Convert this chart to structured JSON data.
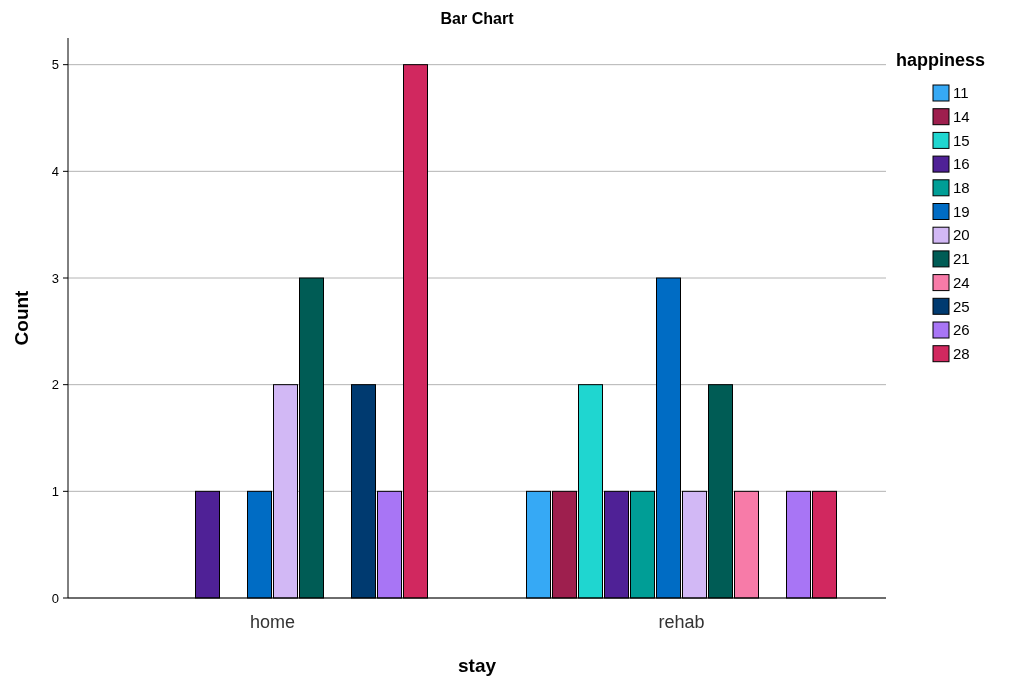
{
  "chart_data": {
    "type": "bar",
    "title": "Bar Chart",
    "xlabel": "stay",
    "ylabel": "Count",
    "legend_title": "happiness",
    "categories": [
      "home",
      "rehab"
    ],
    "series": [
      {
        "name": "11",
        "color": "#36a9f5",
        "values": [
          null,
          1
        ]
      },
      {
        "name": "14",
        "color": "#9e1f4e",
        "values": [
          null,
          1
        ]
      },
      {
        "name": "15",
        "color": "#1fd6d0",
        "values": [
          null,
          2
        ]
      },
      {
        "name": "16",
        "color": "#4f2196",
        "values": [
          1,
          1
        ]
      },
      {
        "name": "18",
        "color": "#009e96",
        "values": [
          null,
          1
        ]
      },
      {
        "name": "19",
        "color": "#006cc4",
        "values": [
          1,
          3
        ]
      },
      {
        "name": "20",
        "color": "#d2b8f5",
        "values": [
          2,
          1
        ]
      },
      {
        "name": "21",
        "color": "#005c55",
        "values": [
          3,
          2
        ]
      },
      {
        "name": "24",
        "color": "#f77ba8",
        "values": [
          null,
          1
        ]
      },
      {
        "name": "25",
        "color": "#003a70",
        "values": [
          2,
          null
        ]
      },
      {
        "name": "26",
        "color": "#a875f5",
        "values": [
          1,
          1
        ]
      },
      {
        "name": "28",
        "color": "#d1285f",
        "values": [
          5,
          1
        ]
      }
    ],
    "ylim": [
      0,
      5.25
    ],
    "yticks": [
      0,
      1,
      2,
      3,
      4,
      5
    ],
    "grid": "y",
    "legend": "right"
  }
}
